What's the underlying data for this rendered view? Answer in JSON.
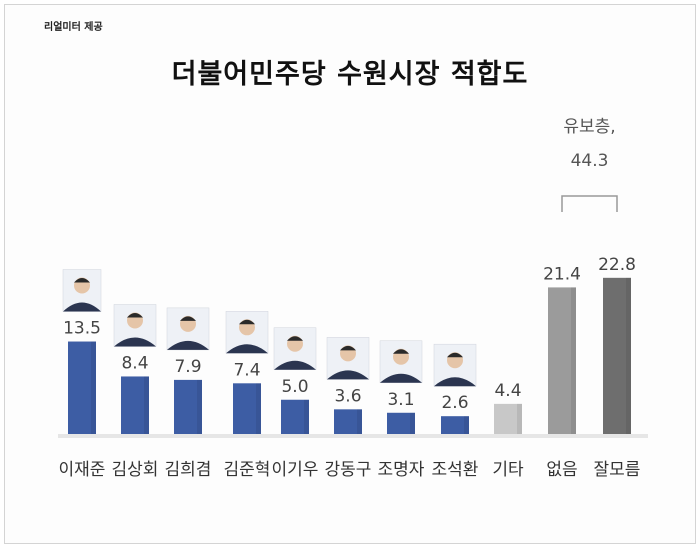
{
  "source_label": "리얼미터 제공",
  "colors": {
    "blue_bar": "#3d5da4",
    "gray_bar": "#c8c8c8",
    "undecided_bar": "#9b9b9b",
    "dont_know_bar": "#6e6e6e"
  },
  "chart_data": {
    "type": "bar",
    "title": "더불어민주당 수원시장 적합도",
    "categories": [
      "이재준",
      "김상회",
      "김희겸",
      "김준혁",
      "이기우",
      "강동구",
      "조명자",
      "조석환",
      "기타",
      "없음",
      "잘모름"
    ],
    "values": [
      13.5,
      8.4,
      7.9,
      7.4,
      5.0,
      3.6,
      3.1,
      2.6,
      4.4,
      21.4,
      22.8
    ],
    "value_labels": [
      "13.5",
      "8.4",
      "7.9",
      "7.4",
      "5.0",
      "3.6",
      "3.1",
      "2.6",
      "4.4",
      "21.4",
      "22.8"
    ],
    "has_photo": [
      true,
      true,
      true,
      true,
      true,
      true,
      true,
      true,
      false,
      false,
      false
    ],
    "bar_colors": [
      "#3d5da4",
      "#3d5da4",
      "#3d5da4",
      "#3d5da4",
      "#3d5da4",
      "#3d5da4",
      "#3d5da4",
      "#3d5da4",
      "#c8c8c8",
      "#9b9b9b",
      "#6e6e6e"
    ],
    "bracket_annotation": {
      "line1": "유보층,",
      "line2": "44.3",
      "spans": [
        "없음",
        "잘모름"
      ]
    },
    "xlabel": "",
    "ylabel": "",
    "ylim": [
      0,
      25
    ],
    "grid": false,
    "legend": "none"
  }
}
